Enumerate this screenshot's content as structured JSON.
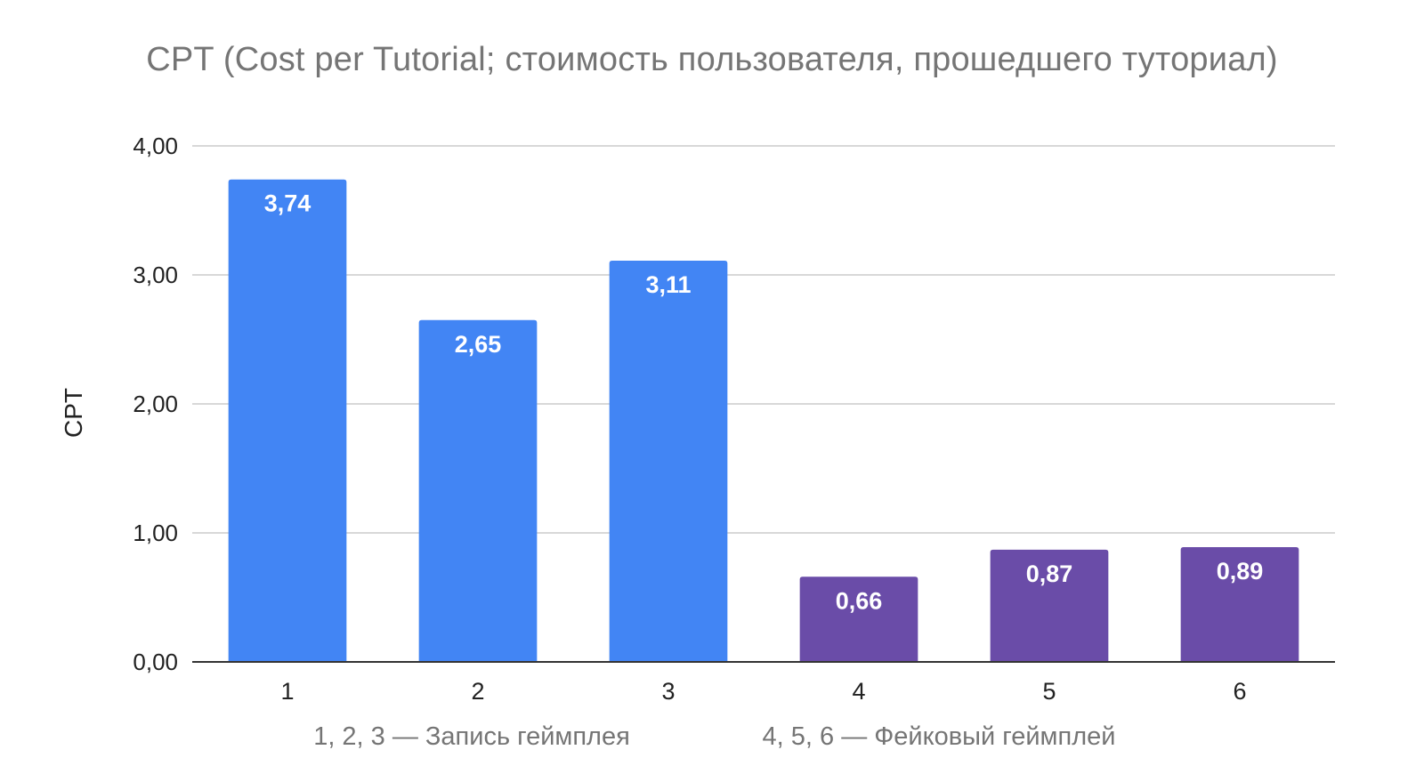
{
  "chart_data": {
    "type": "bar",
    "title": "CPT (Cost per Tutorial; стоимость пользователя, прошедшего туториал)",
    "ylabel": "CPT",
    "xlabel": "",
    "categories": [
      "1",
      "2",
      "3",
      "4",
      "5",
      "6"
    ],
    "values": [
      3.74,
      2.65,
      3.11,
      0.66,
      0.87,
      0.89
    ],
    "data_labels": [
      "3,74",
      "2,65",
      "3,11",
      "0,66",
      "0,87",
      "0,89"
    ],
    "bar_colors": [
      "#4285f4",
      "#4285f4",
      "#4285f4",
      "#6a4ca8",
      "#6a4ca8",
      "#6a4ca8"
    ],
    "ylim": [
      0,
      4
    ],
    "y_ticks": [
      0,
      1,
      2,
      3,
      4
    ],
    "y_tick_labels": [
      "0,00",
      "1,00",
      "2,00",
      "3,00",
      "4,00"
    ],
    "grid": true,
    "annotations": [
      "1, 2, 3 — Запись геймплея",
      "4, 5, 6 — Фейковый геймплей"
    ]
  }
}
